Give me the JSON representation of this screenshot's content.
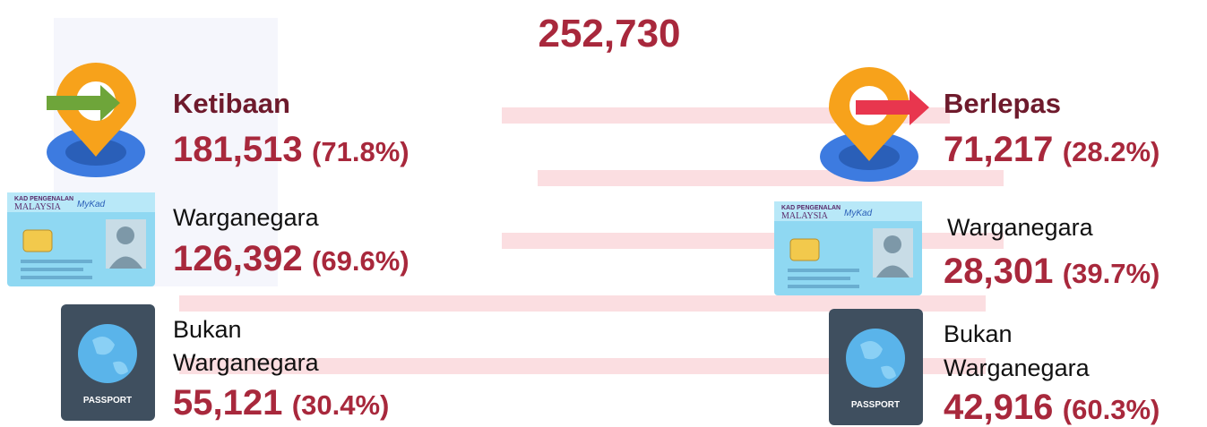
{
  "total": "252,730",
  "icons": {
    "card_top": "KAD PENGENALAN",
    "card_country": "MALAYSIA",
    "card_brand": "MyKad",
    "passport": "PASSPORT"
  },
  "arrivals": {
    "title": "Ketibaan",
    "value": "181,513",
    "percent": "(71.8%)",
    "citizen": {
      "label": "Warganegara",
      "value": "126,392",
      "percent": "(69.6%)"
    },
    "non_citizen": {
      "label_lines": [
        "Bukan",
        "Warganegara"
      ],
      "value": "55,121",
      "percent": "(30.4%)"
    }
  },
  "departures": {
    "title": "Berlepas",
    "value": "71,217",
    "percent": "(28.2%)",
    "citizen": {
      "label": "Warganegara",
      "value": "28,301",
      "percent": "(39.7%)"
    },
    "non_citizen": {
      "label_lines": [
        "Bukan",
        "Warganegara"
      ],
      "value": "42,916",
      "percent": "(60.3%)"
    }
  }
}
